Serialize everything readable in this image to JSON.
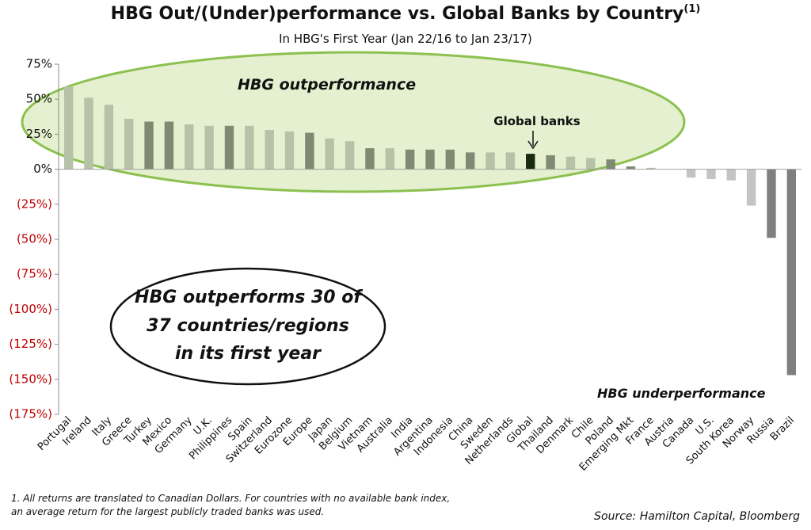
{
  "chart_data": {
    "type": "bar",
    "title": "HBG Out/(Under)performance vs. Global Banks by Country",
    "title_superscript": "(1)",
    "subtitle": "In HBG's First Year (Jan 22/16 to Jan 23/17)",
    "ylim": [
      -175,
      75
    ],
    "yticks": [
      75,
      50,
      25,
      0,
      -25,
      -50,
      -75,
      -100,
      -125,
      -150,
      -175
    ],
    "ytick_labels": [
      "75%",
      "50%",
      "25%",
      "0%",
      "(25%)",
      "(50%)",
      "(75%)",
      "(100%)",
      "(125%)",
      "(150%)",
      "(175%)"
    ],
    "grid": false,
    "categories": [
      "Portugal",
      "Ireland",
      "Italy",
      "Greece",
      "Turkey",
      "Mexico",
      "Germany",
      "U.K.",
      "Philippines",
      "Spain",
      "Switzerland",
      "Eurozone",
      "Europe",
      "Japan",
      "Belgium",
      "Vietnam",
      "Australia",
      "India",
      "Argentina",
      "Indonesia",
      "China",
      "Sweden",
      "Netherlands",
      "Global",
      "Thailand",
      "Denmark",
      "Chile",
      "Poland",
      "Emerging Mkt",
      "France",
      "Austria",
      "Canada",
      "U.S.",
      "South Korea",
      "Norway",
      "Russia",
      "Brazil"
    ],
    "values": [
      59,
      51,
      46,
      36,
      34,
      34,
      32,
      31,
      31,
      31,
      28,
      27,
      26,
      22,
      20,
      15,
      15,
      14,
      14,
      14,
      12,
      12,
      12,
      11,
      10,
      9,
      8,
      7,
      2,
      1,
      0,
      -6,
      -7,
      -8,
      -26,
      -49,
      -147
    ],
    "bar_colors": [
      "#b5c2a8",
      "#b5c2a8",
      "#b5c2a8",
      "#b5c2a8",
      "#7e8b72",
      "#7e8b72",
      "#b5c2a8",
      "#b5c2a8",
      "#7e8b72",
      "#b5c2a8",
      "#b5c2a8",
      "#b5c2a8",
      "#7e8b72",
      "#b5c2a8",
      "#b5c2a8",
      "#7e8b72",
      "#b5c2a8",
      "#7e8b72",
      "#7e8b72",
      "#7e8b72",
      "#7e8b72",
      "#b5c2a8",
      "#b5c2a8",
      "#1a2a10",
      "#7e8b72",
      "#b5c2a8",
      "#b5c2a8",
      "#7e8b72",
      "#7e8b72",
      "#b5c2a8",
      "#b5c2a8",
      "#c4c4c4",
      "#c4c4c4",
      "#c4c4c4",
      "#c4c4c4",
      "#7f7f7f",
      "#7f7f7f"
    ],
    "annotations": {
      "outperformance": "HBG outperformance",
      "underperformance": "HBG underperformance",
      "global_banks": "Global banks",
      "callout_line1": "HBG outperforms 30 of",
      "callout_line2": "37 countries/regions",
      "callout_line3": "in its first year"
    }
  },
  "colors": {
    "positive_tick": "#111111",
    "negative_tick": "#c00000",
    "ellipse_fill": "#e4f0cf",
    "ellipse_stroke": "#8cc04f"
  },
  "footnote": {
    "line1": "1. All returns are translated to Canadian Dollars. For countries with no available bank index,",
    "line2": "an average return for the largest publicly traded banks was used."
  },
  "source": "Source: Hamilton Capital, Bloomberg"
}
